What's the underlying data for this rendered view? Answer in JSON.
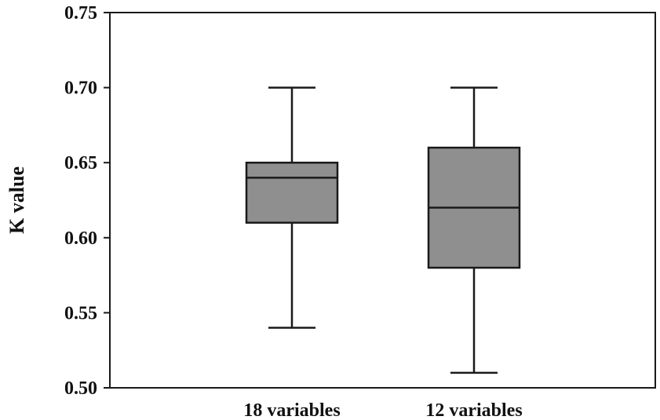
{
  "chart_data": {
    "type": "box",
    "ylabel": "K value",
    "xlabel": "",
    "ylim": [
      0.5,
      0.75
    ],
    "yticks": [
      "0.50",
      "0.55",
      "0.60",
      "0.65",
      "0.70",
      "0.75"
    ],
    "grid": false,
    "categories": [
      "18 variables",
      "12 variables"
    ],
    "boxes": [
      {
        "category": "18 variables",
        "min": 0.54,
        "q1": 0.61,
        "median": 0.64,
        "q3": 0.65,
        "max": 0.7
      },
      {
        "category": "12 variables",
        "min": 0.51,
        "q1": 0.58,
        "median": 0.62,
        "q3": 0.66,
        "max": 0.7
      }
    ],
    "colors": {
      "box_fill": "#8f8f8f",
      "line": "#1a1a1a",
      "background": "#ffffff"
    }
  }
}
